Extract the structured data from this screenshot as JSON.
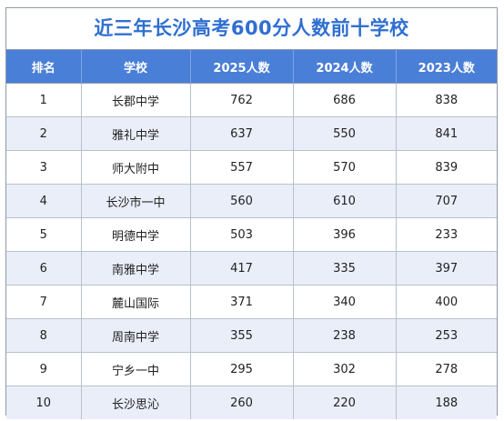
{
  "title": "近三年长沙高考600分人数前十学校",
  "headers": [
    "排名",
    "学校",
    "2025人数",
    "2024人数",
    "2023人数"
  ],
  "rows": [
    [
      "1",
      "长郡中学",
      "762",
      "686",
      "838"
    ],
    [
      "2",
      "雅礼中学",
      "637",
      "550",
      "841"
    ],
    [
      "3",
      "师大附中",
      "557",
      "570",
      "839"
    ],
    [
      "4",
      "长沙市一中",
      "560",
      "610",
      "707"
    ],
    [
      "5",
      "明德中学",
      "503",
      "396",
      "233"
    ],
    [
      "6",
      "南雅中学",
      "417",
      "335",
      "397"
    ],
    [
      "7",
      "麓山国际",
      "371",
      "340",
      "400"
    ],
    [
      "8",
      "周南中学",
      "355",
      "238",
      "253"
    ],
    [
      "9",
      "宁乡一中",
      "295",
      "302",
      "278"
    ],
    [
      "10",
      "长沙思沁",
      "260",
      "220",
      "188"
    ]
  ]
}
